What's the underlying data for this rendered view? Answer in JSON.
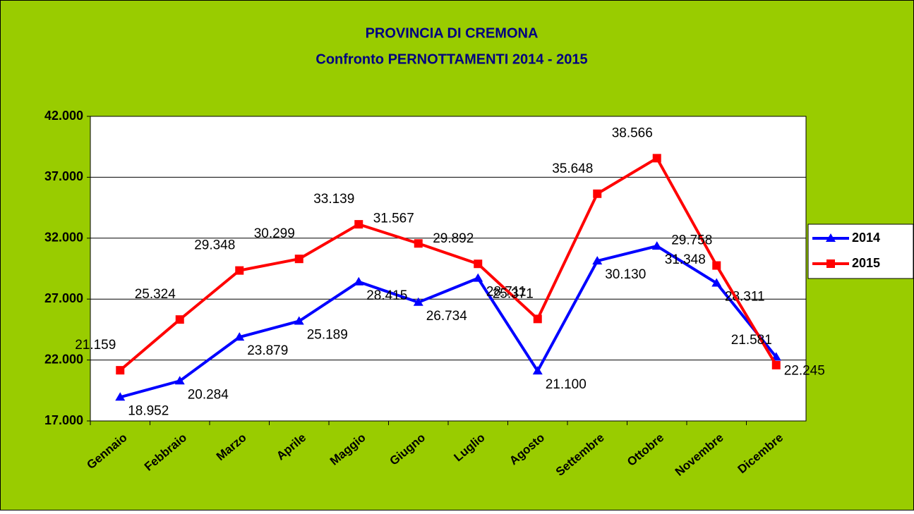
{
  "chart_data": {
    "type": "line",
    "title": "PROVINCIA DI CREMONA",
    "subtitle": "Confronto PERNOTTAMENTI  2014 - 2015",
    "categories": [
      "Gennaio",
      "Febbraio",
      "Marzo",
      "Aprile",
      "Maggio",
      "Giugno",
      "Luglio",
      "Agosto",
      "Settembre",
      "Ottobre",
      "Novembre",
      "Dicembre"
    ],
    "series": [
      {
        "name": "2014",
        "color": "#0000ff",
        "marker": "triangle",
        "values": [
          18952,
          20284,
          23879,
          25189,
          28415,
          26734,
          28711,
          21100,
          30130,
          31348,
          28311,
          22245
        ],
        "value_labels": [
          "18.952",
          "20.284",
          "23.879",
          "25.189",
          "28.415",
          "26.734",
          "28.711",
          "21.100",
          "30.130",
          "31.348",
          "28.311",
          "22.245"
        ]
      },
      {
        "name": "2015",
        "color": "#ff0000",
        "marker": "square",
        "values": [
          21159,
          25324,
          29348,
          30299,
          33139,
          31567,
          29892,
          25371,
          35648,
          38566,
          29758,
          21581
        ],
        "value_labels": [
          "21.159",
          "25.324",
          "29.348",
          "30.299",
          "33.139",
          "31.567",
          "29.892",
          "25.371",
          "35.648",
          "38.566",
          "29.758",
          "21.581"
        ]
      }
    ],
    "ylim": [
      17000,
      42000
    ],
    "yticks": [
      {
        "value": 17000,
        "label": "17.000"
      },
      {
        "value": 22000,
        "label": "22.000"
      },
      {
        "value": 27000,
        "label": "27.000"
      },
      {
        "value": 32000,
        "label": "32.000"
      },
      {
        "value": 37000,
        "label": "37.000"
      },
      {
        "value": 42000,
        "label": "42.000"
      }
    ],
    "grid": true,
    "legend": "right"
  }
}
